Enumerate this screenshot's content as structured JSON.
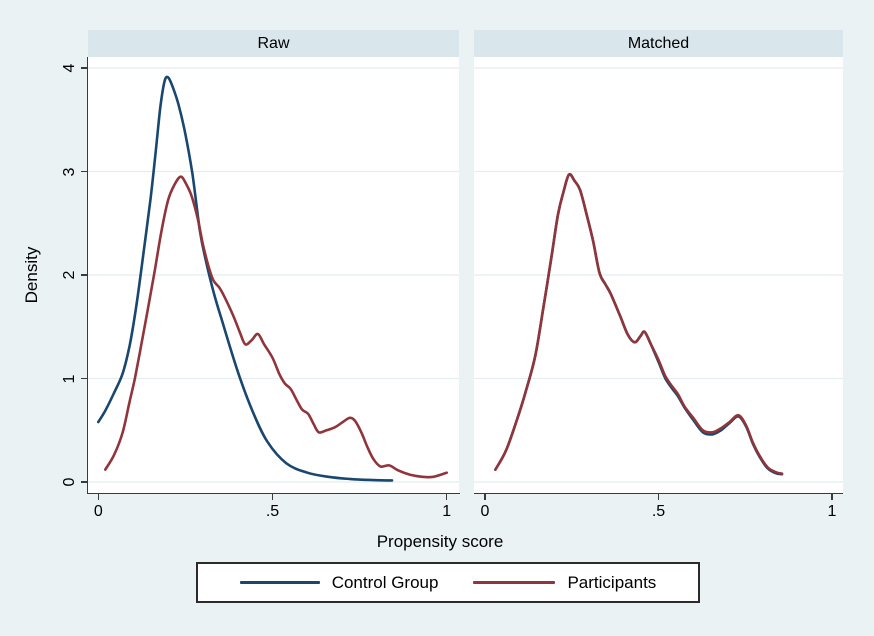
{
  "colors": {
    "background": "#eaf2f3",
    "panel_header": "#d9e6eb",
    "plot_background": "#ffffff",
    "gridline": "#e4edf0",
    "axis": "#3a3a3a",
    "text": "#000000",
    "control_group": "#1a476f",
    "participants": "#90353b"
  },
  "chart_data": {
    "type": "line",
    "kind": "kernel-density",
    "title": "",
    "xlabel": "Propensity score",
    "ylabel": "Density",
    "xlim": [
      0,
      1
    ],
    "ylim": [
      0,
      4
    ],
    "grid": true,
    "x_ticks": [
      {
        "v": 0,
        "label": "0"
      },
      {
        "v": 0.5,
        "label": ".5"
      },
      {
        "v": 1,
        "label": "1"
      }
    ],
    "y_ticks": [
      {
        "v": 0,
        "label": "0"
      },
      {
        "v": 1,
        "label": "1"
      },
      {
        "v": 2,
        "label": "2"
      },
      {
        "v": 3,
        "label": "3"
      },
      {
        "v": 4,
        "label": "4"
      }
    ],
    "legend": {
      "position": "bottom",
      "entries": [
        {
          "label": "Control Group",
          "color": "#1a476f"
        },
        {
          "label": "Participants",
          "color": "#90353b"
        }
      ]
    },
    "panels": [
      {
        "title": "Raw",
        "series": [
          {
            "name": "Control Group",
            "color": "#1a476f",
            "points": [
              [
                0.0,
                0.58
              ],
              [
                0.02,
                0.69
              ],
              [
                0.045,
                0.86
              ],
              [
                0.07,
                1.05
              ],
              [
                0.09,
                1.32
              ],
              [
                0.11,
                1.72
              ],
              [
                0.13,
                2.22
              ],
              [
                0.15,
                2.74
              ],
              [
                0.165,
                3.2
              ],
              [
                0.178,
                3.62
              ],
              [
                0.19,
                3.87
              ],
              [
                0.2,
                3.91
              ],
              [
                0.212,
                3.83
              ],
              [
                0.23,
                3.65
              ],
              [
                0.25,
                3.36
              ],
              [
                0.27,
                2.98
              ],
              [
                0.292,
                2.42
              ],
              [
                0.31,
                2.12
              ],
              [
                0.332,
                1.82
              ],
              [
                0.355,
                1.56
              ],
              [
                0.4,
                1.07
              ],
              [
                0.442,
                0.69
              ],
              [
                0.485,
                0.39
              ],
              [
                0.54,
                0.18
              ],
              [
                0.6,
                0.09
              ],
              [
                0.66,
                0.05
              ],
              [
                0.72,
                0.03
              ],
              [
                0.78,
                0.02
              ],
              [
                0.843,
                0.015
              ]
            ]
          },
          {
            "name": "Participants",
            "color": "#90353b",
            "points": [
              [
                0.02,
                0.12
              ],
              [
                0.045,
                0.26
              ],
              [
                0.07,
                0.48
              ],
              [
                0.09,
                0.78
              ],
              [
                0.105,
                1.0
              ],
              [
                0.122,
                1.3
              ],
              [
                0.14,
                1.63
              ],
              [
                0.16,
                2.0
              ],
              [
                0.18,
                2.4
              ],
              [
                0.2,
                2.72
              ],
              [
                0.22,
                2.88
              ],
              [
                0.237,
                2.95
              ],
              [
                0.252,
                2.88
              ],
              [
                0.268,
                2.76
              ],
              [
                0.285,
                2.55
              ],
              [
                0.3,
                2.3
              ],
              [
                0.315,
                2.1
              ],
              [
                0.33,
                1.95
              ],
              [
                0.347,
                1.88
              ],
              [
                0.362,
                1.79
              ],
              [
                0.387,
                1.61
              ],
              [
                0.407,
                1.44
              ],
              [
                0.422,
                1.33
              ],
              [
                0.44,
                1.37
              ],
              [
                0.458,
                1.43
              ],
              [
                0.476,
                1.33
              ],
              [
                0.5,
                1.2
              ],
              [
                0.52,
                1.04
              ],
              [
                0.536,
                0.95
              ],
              [
                0.552,
                0.9
              ],
              [
                0.568,
                0.8
              ],
              [
                0.585,
                0.7
              ],
              [
                0.602,
                0.66
              ],
              [
                0.618,
                0.56
              ],
              [
                0.633,
                0.48
              ],
              [
                0.655,
                0.5
              ],
              [
                0.68,
                0.53
              ],
              [
                0.702,
                0.58
              ],
              [
                0.722,
                0.62
              ],
              [
                0.737,
                0.59
              ],
              [
                0.755,
                0.48
              ],
              [
                0.772,
                0.34
              ],
              [
                0.79,
                0.22
              ],
              [
                0.81,
                0.15
              ],
              [
                0.835,
                0.16
              ],
              [
                0.862,
                0.11
              ],
              [
                0.895,
                0.07
              ],
              [
                0.93,
                0.05
              ],
              [
                0.962,
                0.05
              ],
              [
                1.0,
                0.09
              ]
            ]
          }
        ]
      },
      {
        "title": "Matched",
        "series": [
          {
            "name": "Control Group",
            "color": "#1a476f",
            "points": [
              [
                0.03,
                0.12
              ],
              [
                0.06,
                0.3
              ],
              [
                0.09,
                0.58
              ],
              [
                0.118,
                0.88
              ],
              [
                0.145,
                1.22
              ],
              [
                0.168,
                1.68
              ],
              [
                0.19,
                2.14
              ],
              [
                0.21,
                2.58
              ],
              [
                0.226,
                2.8
              ],
              [
                0.242,
                2.97
              ],
              [
                0.258,
                2.91
              ],
              [
                0.274,
                2.82
              ],
              [
                0.294,
                2.57
              ],
              [
                0.312,
                2.32
              ],
              [
                0.33,
                2.02
              ],
              [
                0.347,
                1.91
              ],
              [
                0.362,
                1.82
              ],
              [
                0.39,
                1.6
              ],
              [
                0.412,
                1.42
              ],
              [
                0.432,
                1.35
              ],
              [
                0.448,
                1.41
              ],
              [
                0.46,
                1.45
              ],
              [
                0.478,
                1.33
              ],
              [
                0.5,
                1.16
              ],
              [
                0.52,
                1.0
              ],
              [
                0.54,
                0.9
              ],
              [
                0.556,
                0.83
              ],
              [
                0.575,
                0.72
              ],
              [
                0.6,
                0.6
              ],
              [
                0.628,
                0.48
              ],
              [
                0.655,
                0.46
              ],
              [
                0.68,
                0.5
              ],
              [
                0.705,
                0.57
              ],
              [
                0.73,
                0.635
              ],
              [
                0.752,
                0.54
              ],
              [
                0.772,
                0.37
              ],
              [
                0.792,
                0.24
              ],
              [
                0.815,
                0.13
              ],
              [
                0.838,
                0.085
              ],
              [
                0.856,
                0.075
              ]
            ]
          },
          {
            "name": "Participants",
            "color": "#90353b",
            "points": [
              [
                0.03,
                0.12
              ],
              [
                0.06,
                0.3
              ],
              [
                0.09,
                0.58
              ],
              [
                0.118,
                0.88
              ],
              [
                0.145,
                1.22
              ],
              [
                0.168,
                1.68
              ],
              [
                0.19,
                2.14
              ],
              [
                0.21,
                2.58
              ],
              [
                0.226,
                2.8
              ],
              [
                0.242,
                2.97
              ],
              [
                0.258,
                2.91
              ],
              [
                0.274,
                2.82
              ],
              [
                0.294,
                2.57
              ],
              [
                0.312,
                2.32
              ],
              [
                0.33,
                2.02
              ],
              [
                0.347,
                1.91
              ],
              [
                0.362,
                1.82
              ],
              [
                0.39,
                1.6
              ],
              [
                0.412,
                1.42
              ],
              [
                0.432,
                1.35
              ],
              [
                0.448,
                1.41
              ],
              [
                0.46,
                1.45
              ],
              [
                0.478,
                1.33
              ],
              [
                0.5,
                1.18
              ],
              [
                0.52,
                1.02
              ],
              [
                0.54,
                0.92
              ],
              [
                0.556,
                0.85
              ],
              [
                0.575,
                0.73
              ],
              [
                0.6,
                0.62
              ],
              [
                0.628,
                0.5
              ],
              [
                0.655,
                0.48
              ],
              [
                0.68,
                0.52
              ],
              [
                0.705,
                0.58
              ],
              [
                0.73,
                0.645
              ],
              [
                0.752,
                0.55
              ],
              [
                0.772,
                0.38
              ],
              [
                0.792,
                0.25
              ],
              [
                0.815,
                0.14
              ],
              [
                0.838,
                0.095
              ],
              [
                0.856,
                0.08
              ]
            ]
          }
        ]
      }
    ]
  }
}
